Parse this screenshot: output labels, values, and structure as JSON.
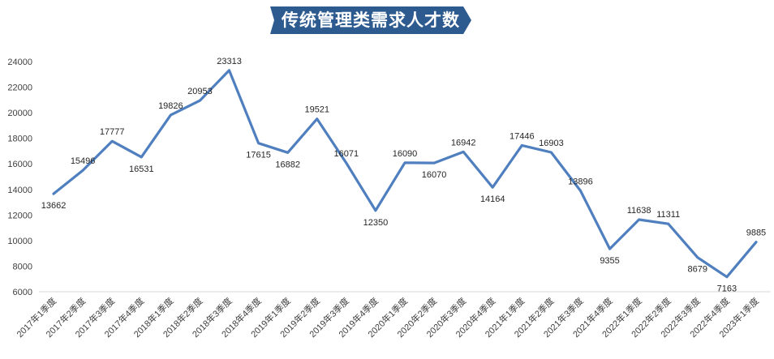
{
  "chart_data": {
    "type": "line",
    "title": "传统管理类需求人才数",
    "xlabel": "",
    "ylabel": "",
    "ylim": [
      6000,
      24000
    ],
    "yticks": [
      6000,
      8000,
      10000,
      12000,
      14000,
      16000,
      18000,
      20000,
      22000,
      24000
    ],
    "grid": false,
    "legend": "none",
    "line_color": "#4f7fbe",
    "categories": [
      "2017年1季度",
      "2017年2季度",
      "2017年3季度",
      "2017年4季度",
      "2018年1季度",
      "2018年2季度",
      "2018年3季度",
      "2018年4季度",
      "2019年1季度",
      "2019年2季度",
      "2019年3季度",
      "2019年4季度",
      "2020年1季度",
      "2020年2季度",
      "2020年3季度",
      "2020年4季度",
      "2021年1季度",
      "2021年2季度",
      "2021年3季度",
      "2021年4季度",
      "2022年1季度",
      "2022年2季度",
      "2022年3季度",
      "2022年4季度",
      "2023年1季度"
    ],
    "values": [
      13662,
      15496,
      17777,
      16531,
      19826,
      20953,
      23313,
      17615,
      16882,
      19521,
      16071,
      12350,
      16090,
      16070,
      16942,
      14164,
      17446,
      16903,
      13896,
      9355,
      11638,
      11311,
      8679,
      7163,
      9885
    ],
    "label_positions": [
      "below",
      "above",
      "above",
      "below",
      "above",
      "above",
      "above",
      "below",
      "below",
      "above",
      "above",
      "below",
      "above",
      "below",
      "above",
      "below",
      "above",
      "above",
      "above",
      "below",
      "above",
      "above",
      "below",
      "below",
      "above"
    ]
  }
}
